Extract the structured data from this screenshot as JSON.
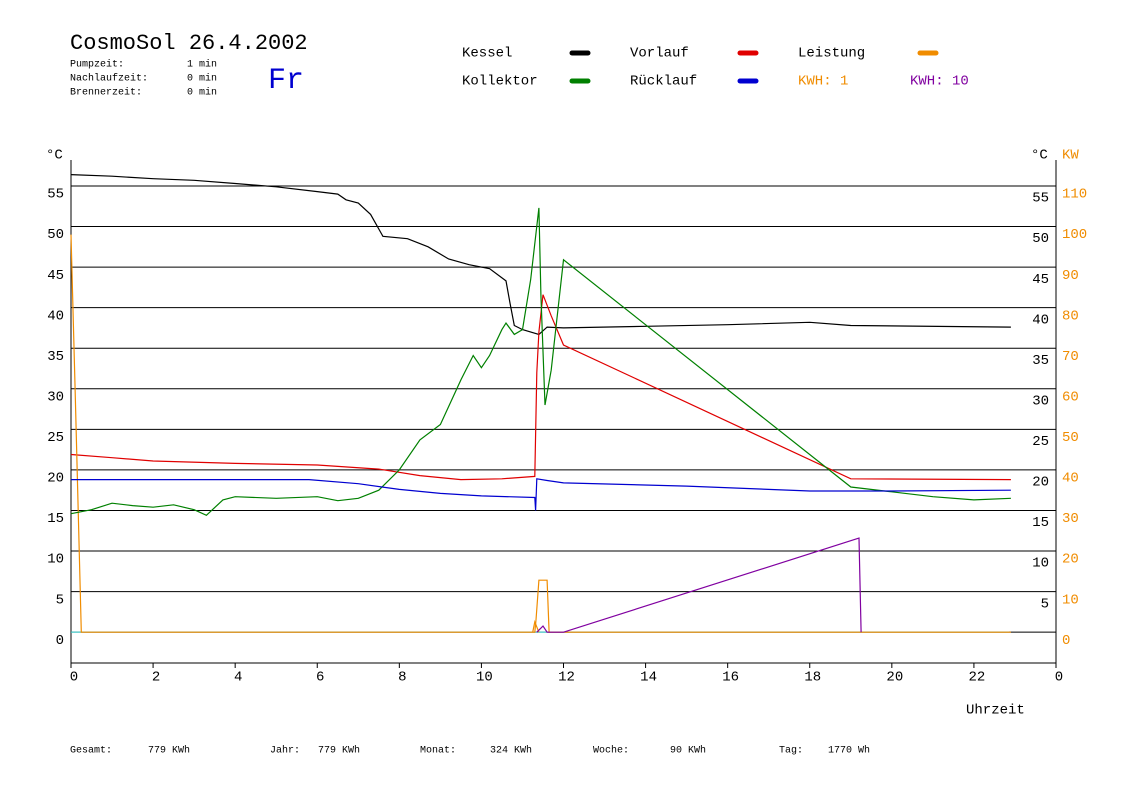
{
  "chart_data": {
    "type": "line",
    "title": "CosmoSol 26.4.2002",
    "weekday": "Fr",
    "info": [
      {
        "label": "Pumpzeit:",
        "value": "1 min"
      },
      {
        "label": "Nachlaufzeit:",
        "value": "0 min"
      },
      {
        "label": "Brennerzeit:",
        "value": "0 min"
      }
    ],
    "ylabel": "°C",
    "y2label": "KW",
    "xlabel": "Uhrzeit",
    "xlim": [
      0,
      24
    ],
    "xticks": [
      0,
      2,
      4,
      6,
      8,
      10,
      12,
      14,
      16,
      18,
      20,
      22,
      {
        "value": 24,
        "label": "0"
      }
    ],
    "ylim": [
      -3.8,
      58.2
    ],
    "yticks": [
      0,
      5,
      10,
      15,
      20,
      25,
      30,
      35,
      40,
      45,
      50,
      55
    ],
    "y2lim": [
      -7.6,
      116.4
    ],
    "y2ticks": [
      0,
      10,
      20,
      30,
      40,
      50,
      60,
      70,
      80,
      90,
      100,
      110
    ],
    "grid": true,
    "zero_line_color": "#40e0e0",
    "series": [
      {
        "name": "Kessel",
        "color": "#000000",
        "x": [
          0,
          1,
          2,
          3,
          4,
          5,
          6,
          6.5,
          6.7,
          7,
          7.3,
          7.6,
          8.2,
          8.7,
          9.2,
          9.7,
          10.2,
          10.6,
          10.7,
          10.8,
          11,
          11.4,
          11.6,
          12,
          14,
          16,
          18,
          19,
          22.9
        ],
        "values": [
          56.4,
          56.2,
          55.9,
          55.7,
          55.3,
          54.9,
          54.3,
          54,
          53.3,
          52.9,
          51.5,
          48.8,
          48.5,
          47.5,
          46,
          45.3,
          44.8,
          43.3,
          40.5,
          37.8,
          37.3,
          36.7,
          37.6,
          37.5,
          37.7,
          37.9,
          38.2,
          37.8,
          37.6
        ]
      },
      {
        "name": "Vorlauf",
        "color": "#e00000",
        "x": [
          0,
          1,
          2,
          4,
          6,
          7.5,
          8.5,
          9.5,
          10.5,
          11.3,
          11.35,
          11.4,
          11.5,
          11.7,
          12,
          19,
          22.9
        ],
        "values": [
          21.9,
          21.5,
          21.1,
          20.8,
          20.6,
          20.1,
          19.3,
          18.8,
          18.9,
          19.2,
          32,
          37,
          41.6,
          39,
          35.4,
          18.9,
          18.8
        ]
      },
      {
        "name": "Leistung",
        "color": "#f08c00",
        "axis": "y2",
        "x": [
          0,
          0.1,
          0.25,
          11.3,
          11.33,
          11.4,
          11.6,
          11.65,
          22.9
        ],
        "values": [
          98,
          60,
          0,
          0,
          3,
          12.8,
          12.8,
          0,
          0
        ]
      },
      {
        "name": "Kollektor",
        "color": "#008000",
        "x": [
          0,
          0.5,
          1,
          1.5,
          2,
          2.5,
          3,
          3.3,
          3.7,
          4,
          5,
          6,
          6.5,
          7,
          7.5,
          8,
          8.5,
          9,
          9.5,
          9.8,
          10,
          10.2,
          10.5,
          10.6,
          10.8,
          11,
          11.2,
          11.4,
          11.45,
          11.55,
          11.7,
          12,
          19,
          20,
          21,
          22,
          22.9
        ],
        "values": [
          14.6,
          15.1,
          15.9,
          15.6,
          15.4,
          15.7,
          15.1,
          14.4,
          16.3,
          16.7,
          16.5,
          16.7,
          16.2,
          16.5,
          17.5,
          20,
          23.7,
          25.6,
          31.1,
          34.1,
          32.6,
          34.1,
          37.3,
          38.1,
          36.7,
          37.3,
          43.5,
          52.3,
          41.6,
          28,
          32.3,
          45.9,
          17.9,
          17.3,
          16.7,
          16.3,
          16.5
        ]
      },
      {
        "name": "Rücklauf",
        "color": "#0000d0",
        "x": [
          0,
          5.8,
          7,
          8,
          9,
          10,
          11.3,
          11.32,
          11.35,
          11.6,
          12,
          15,
          18,
          20,
          22.9
        ],
        "values": [
          18.8,
          18.8,
          18.3,
          17.6,
          17.1,
          16.8,
          16.6,
          15,
          18.9,
          18.7,
          18.4,
          18,
          17.4,
          17.4,
          17.5
        ]
      },
      {
        "name": "KWH: 1",
        "color": "#f08c00",
        "axis": "y2",
        "x": [
          11.25,
          11.3,
          11.4
        ],
        "values": [
          0,
          2.5,
          0
        ]
      },
      {
        "name": "KWH: 10",
        "color": "#8000a0",
        "axis": "y2",
        "x": [
          11.35,
          11.5,
          11.6,
          12,
          19.2,
          19.25
        ],
        "values": [
          0,
          1.5,
          0,
          0,
          23.2,
          0
        ]
      }
    ],
    "totals": [
      {
        "label": "Gesamt:",
        "value": "779 KWh"
      },
      {
        "label": "Jahr:",
        "value": "779 KWh"
      },
      {
        "label": "Monat:",
        "value": "324 KWh"
      },
      {
        "label": "Woche:",
        "value": "90 KWh"
      },
      {
        "label": "Tag:",
        "value": "1770 Wh"
      }
    ]
  }
}
